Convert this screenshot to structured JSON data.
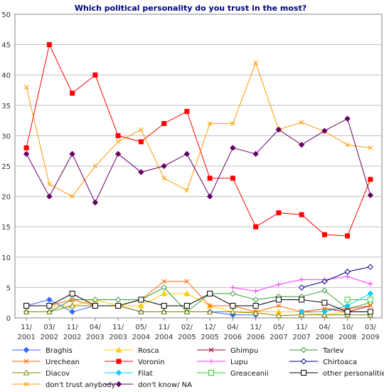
{
  "chart_data": {
    "type": "line",
    "title": "Which political personality do you trust in the most?",
    "xlabel": "",
    "ylabel": "",
    "ylim": [
      0,
      50
    ],
    "yticks": [
      "0",
      "5",
      "10",
      "15",
      "20",
      "25",
      "30",
      "35",
      "40",
      "45",
      "50"
    ],
    "grid": true,
    "legend_position": "bottom",
    "categories": [
      [
        "11/",
        "2001"
      ],
      [
        "03/",
        "2002"
      ],
      [
        "11/",
        "2002"
      ],
      [
        "04/",
        "2003"
      ],
      [
        "11/",
        "2003"
      ],
      [
        "05/",
        "2004"
      ],
      [
        "11/",
        "2004"
      ],
      [
        "02/",
        "2005"
      ],
      [
        "12/",
        "2005"
      ],
      [
        "04/",
        "2006"
      ],
      [
        "11/",
        "2006"
      ],
      [
        "05/",
        "2007"
      ],
      [
        "11/",
        "2007"
      ],
      [
        "04/",
        "2008"
      ],
      [
        "10/",
        "2008"
      ],
      [
        "03/",
        "2009"
      ]
    ],
    "series": [
      {
        "name": "Braghis",
        "color": "#3366FF",
        "marker": "diamond",
        "values": [
          2,
          3,
          1,
          2,
          2,
          1,
          1,
          1,
          1,
          0.5,
          0.5,
          null,
          null,
          null,
          null,
          null
        ]
      },
      {
        "name": "Rosca",
        "color": "#FFCC00",
        "marker": "triangle",
        "values": [
          2,
          2,
          2,
          3,
          2,
          2,
          4,
          4,
          2,
          1,
          1,
          1,
          1,
          0.5,
          1,
          1
        ]
      },
      {
        "name": "Ghimpu",
        "color": "#990033",
        "marker": "x",
        "values": [
          null,
          null,
          null,
          null,
          null,
          null,
          null,
          null,
          null,
          null,
          null,
          null,
          1,
          1.5,
          1,
          2
        ]
      },
      {
        "name": "Tarlev",
        "color": "#339933",
        "marker": "diamond-open",
        "values": [
          1,
          1,
          3,
          3,
          3,
          3,
          5,
          1,
          4,
          4,
          3,
          3.5,
          3.5,
          4.5,
          1.5,
          2.5
        ]
      },
      {
        "name": "Urechean",
        "color": "#FF6600",
        "marker": "x",
        "values": [
          2,
          2,
          3,
          2,
          2,
          3,
          6,
          6,
          2,
          2,
          1,
          2,
          1,
          1.5,
          1.5,
          2
        ]
      },
      {
        "name": "Voronin",
        "color": "#FF0000",
        "marker": "square",
        "values": [
          28,
          45,
          37,
          40,
          30,
          29,
          32,
          34,
          23,
          23,
          15,
          17.3,
          17,
          13.7,
          13.5,
          22.8
        ]
      },
      {
        "name": "Lupu",
        "color": "#FF33FF",
        "marker": "plus",
        "values": [
          null,
          null,
          null,
          null,
          null,
          null,
          null,
          null,
          null,
          5,
          4.4,
          5.5,
          6.3,
          6.3,
          6.8,
          5.6
        ]
      },
      {
        "name": "Chirtoaca",
        "color": "#000080",
        "marker": "diamond-open",
        "values": [
          null,
          null,
          null,
          null,
          null,
          null,
          null,
          null,
          null,
          null,
          null,
          null,
          5,
          6,
          7.6,
          8.4
        ]
      },
      {
        "name": "Diacov",
        "color": "#808000",
        "marker": "triangle-open",
        "values": [
          1,
          1,
          2,
          2,
          2,
          1,
          1,
          1,
          1,
          1,
          0.8,
          0.4,
          0.5,
          0.5,
          0.5,
          0.5
        ]
      },
      {
        "name": "Filat",
        "color": "#00CCFF",
        "marker": "diamond",
        "values": [
          null,
          null,
          null,
          null,
          null,
          null,
          null,
          null,
          null,
          null,
          null,
          null,
          1,
          1,
          2,
          4
        ]
      },
      {
        "name": "Greaceanii",
        "color": "#33CC33",
        "marker": "square-open",
        "values": [
          null,
          null,
          null,
          null,
          null,
          null,
          null,
          null,
          null,
          null,
          null,
          null,
          null,
          null,
          3,
          3
        ]
      },
      {
        "name": "other personalities",
        "color": "#000000",
        "marker": "square-open",
        "values": [
          2,
          2,
          4,
          2,
          2,
          3,
          2,
          2,
          4,
          2,
          2,
          3,
          3,
          2.5,
          1,
          1
        ]
      },
      {
        "name": "don't trust anybody",
        "color": "#FF9900",
        "marker": "x",
        "values": [
          38,
          22,
          20,
          25,
          29,
          31,
          23,
          21,
          32,
          32,
          42,
          31,
          32.2,
          30.7,
          28.5,
          28
        ]
      },
      {
        "name": "don't know/ NA",
        "color": "#660066",
        "marker": "diamond",
        "values": [
          27,
          20,
          27,
          19,
          27,
          24,
          25,
          27,
          20,
          28,
          27,
          31,
          28.5,
          30.8,
          32.8,
          20.2
        ]
      }
    ]
  }
}
